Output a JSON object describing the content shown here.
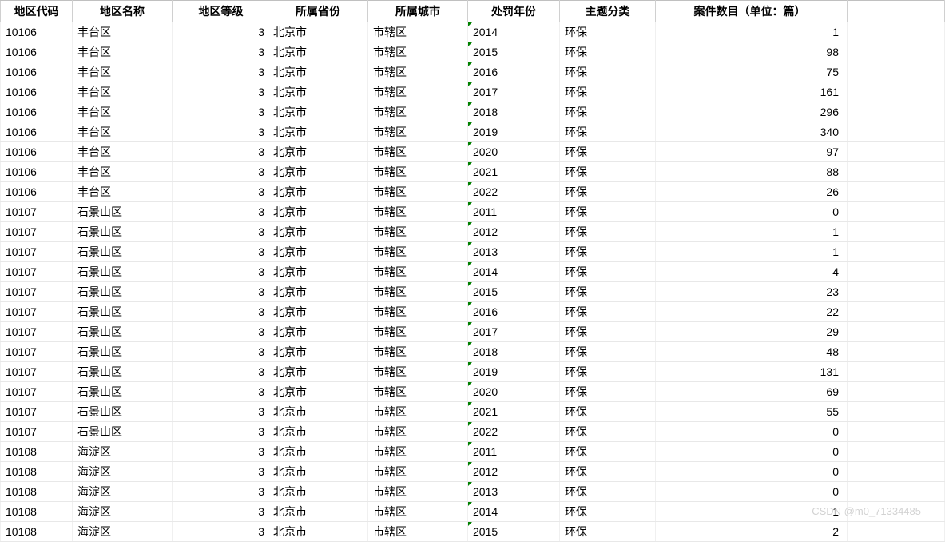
{
  "table": {
    "headers": {
      "code": "地区代码",
      "name": "地区名称",
      "level": "地区等级",
      "province": "所属省份",
      "city": "所属城市",
      "year": "处罚年份",
      "category": "主题分类",
      "count": "案件数目（单位：篇）"
    },
    "rows": [
      {
        "code": "10106",
        "name": "丰台区",
        "level": "3",
        "province": "北京市",
        "city": "市辖区",
        "year": "2014",
        "category": "环保",
        "count": "1"
      },
      {
        "code": "10106",
        "name": "丰台区",
        "level": "3",
        "province": "北京市",
        "city": "市辖区",
        "year": "2015",
        "category": "环保",
        "count": "98"
      },
      {
        "code": "10106",
        "name": "丰台区",
        "level": "3",
        "province": "北京市",
        "city": "市辖区",
        "year": "2016",
        "category": "环保",
        "count": "75"
      },
      {
        "code": "10106",
        "name": "丰台区",
        "level": "3",
        "province": "北京市",
        "city": "市辖区",
        "year": "2017",
        "category": "环保",
        "count": "161"
      },
      {
        "code": "10106",
        "name": "丰台区",
        "level": "3",
        "province": "北京市",
        "city": "市辖区",
        "year": "2018",
        "category": "环保",
        "count": "296"
      },
      {
        "code": "10106",
        "name": "丰台区",
        "level": "3",
        "province": "北京市",
        "city": "市辖区",
        "year": "2019",
        "category": "环保",
        "count": "340"
      },
      {
        "code": "10106",
        "name": "丰台区",
        "level": "3",
        "province": "北京市",
        "city": "市辖区",
        "year": "2020",
        "category": "环保",
        "count": "97"
      },
      {
        "code": "10106",
        "name": "丰台区",
        "level": "3",
        "province": "北京市",
        "city": "市辖区",
        "year": "2021",
        "category": "环保",
        "count": "88"
      },
      {
        "code": "10106",
        "name": "丰台区",
        "level": "3",
        "province": "北京市",
        "city": "市辖区",
        "year": "2022",
        "category": "环保",
        "count": "26"
      },
      {
        "code": "10107",
        "name": "石景山区",
        "level": "3",
        "province": "北京市",
        "city": "市辖区",
        "year": "2011",
        "category": "环保",
        "count": "0"
      },
      {
        "code": "10107",
        "name": "石景山区",
        "level": "3",
        "province": "北京市",
        "city": "市辖区",
        "year": "2012",
        "category": "环保",
        "count": "1"
      },
      {
        "code": "10107",
        "name": "石景山区",
        "level": "3",
        "province": "北京市",
        "city": "市辖区",
        "year": "2013",
        "category": "环保",
        "count": "1"
      },
      {
        "code": "10107",
        "name": "石景山区",
        "level": "3",
        "province": "北京市",
        "city": "市辖区",
        "year": "2014",
        "category": "环保",
        "count": "4"
      },
      {
        "code": "10107",
        "name": "石景山区",
        "level": "3",
        "province": "北京市",
        "city": "市辖区",
        "year": "2015",
        "category": "环保",
        "count": "23"
      },
      {
        "code": "10107",
        "name": "石景山区",
        "level": "3",
        "province": "北京市",
        "city": "市辖区",
        "year": "2016",
        "category": "环保",
        "count": "22"
      },
      {
        "code": "10107",
        "name": "石景山区",
        "level": "3",
        "province": "北京市",
        "city": "市辖区",
        "year": "2017",
        "category": "环保",
        "count": "29"
      },
      {
        "code": "10107",
        "name": "石景山区",
        "level": "3",
        "province": "北京市",
        "city": "市辖区",
        "year": "2018",
        "category": "环保",
        "count": "48"
      },
      {
        "code": "10107",
        "name": "石景山区",
        "level": "3",
        "province": "北京市",
        "city": "市辖区",
        "year": "2019",
        "category": "环保",
        "count": "131"
      },
      {
        "code": "10107",
        "name": "石景山区",
        "level": "3",
        "province": "北京市",
        "city": "市辖区",
        "year": "2020",
        "category": "环保",
        "count": "69"
      },
      {
        "code": "10107",
        "name": "石景山区",
        "level": "3",
        "province": "北京市",
        "city": "市辖区",
        "year": "2021",
        "category": "环保",
        "count": "55"
      },
      {
        "code": "10107",
        "name": "石景山区",
        "level": "3",
        "province": "北京市",
        "city": "市辖区",
        "year": "2022",
        "category": "环保",
        "count": "0"
      },
      {
        "code": "10108",
        "name": "海淀区",
        "level": "3",
        "province": "北京市",
        "city": "市辖区",
        "year": "2011",
        "category": "环保",
        "count": "0"
      },
      {
        "code": "10108",
        "name": "海淀区",
        "level": "3",
        "province": "北京市",
        "city": "市辖区",
        "year": "2012",
        "category": "环保",
        "count": "0"
      },
      {
        "code": "10108",
        "name": "海淀区",
        "level": "3",
        "province": "北京市",
        "city": "市辖区",
        "year": "2013",
        "category": "环保",
        "count": "0"
      },
      {
        "code": "10108",
        "name": "海淀区",
        "level": "3",
        "province": "北京市",
        "city": "市辖区",
        "year": "2014",
        "category": "环保",
        "count": "1"
      },
      {
        "code": "10108",
        "name": "海淀区",
        "level": "3",
        "province": "北京市",
        "city": "市辖区",
        "year": "2015",
        "category": "环保",
        "count": "2"
      }
    ]
  },
  "watermark": "CSDN @m0_71334485"
}
